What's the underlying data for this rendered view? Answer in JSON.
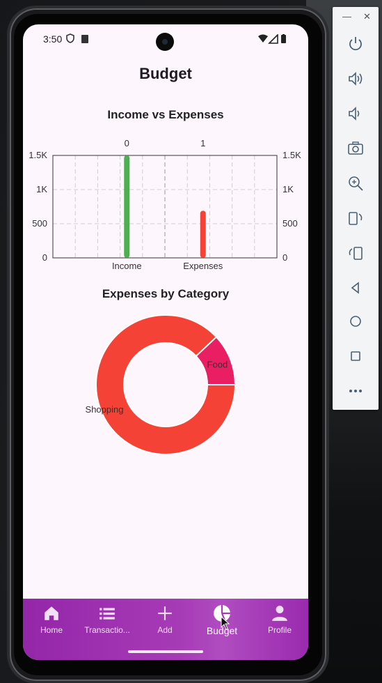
{
  "status_bar": {
    "time": "3:50"
  },
  "app": {
    "title": "Budget"
  },
  "charts": {
    "bar_title": "Income vs Expenses",
    "pie_title": "Expenses by Category"
  },
  "chart_data": [
    {
      "type": "bar",
      "title": "Income vs Expenses",
      "categories": [
        "Income",
        "Expenses"
      ],
      "top_labels": [
        "0",
        "1"
      ],
      "values": [
        1500,
        690
      ],
      "colors": [
        "#4caf50",
        "#f44336"
      ],
      "ylim": [
        0,
        1500
      ],
      "yticks": [
        0,
        500,
        1000,
        1500
      ],
      "ytick_labels": [
        "0",
        "500",
        "1K",
        "1.5K"
      ],
      "grid": true
    },
    {
      "type": "pie",
      "title": "Expenses by Category",
      "donut": true,
      "slices": [
        {
          "label": "Food",
          "value": 12,
          "color": "#e91e63"
        },
        {
          "label": "Shopping",
          "value": 88,
          "color": "#f44336"
        }
      ]
    }
  ],
  "bottom_nav": {
    "items": [
      {
        "label": "Home",
        "icon": "home-icon"
      },
      {
        "label": "Transactio...",
        "icon": "list-icon"
      },
      {
        "label": "Add",
        "icon": "plus-icon"
      },
      {
        "label": "Budget",
        "icon": "pie-chart-icon",
        "active": true
      },
      {
        "label": "Profile",
        "icon": "person-icon"
      }
    ]
  },
  "emulator_toolbar": {
    "buttons": [
      "power-icon",
      "volume-up-icon",
      "volume-down-icon",
      "camera-icon",
      "zoom-in-icon",
      "rotate-left-icon",
      "rotate-right-icon",
      "back-icon",
      "home-circle-icon",
      "overview-icon",
      "more-icon"
    ]
  }
}
